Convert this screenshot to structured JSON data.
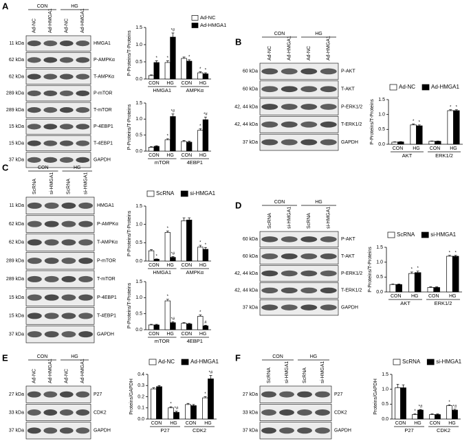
{
  "panels": [
    {
      "letter": "A",
      "blot": {
        "conditions": [
          {
            "name": "CON",
            "lanes": [
              "Ad-NC",
              "Ad-HMGA1"
            ]
          },
          {
            "name": "HG",
            "lanes": [
              "Ad-NC",
              "Ad-HMGA1"
            ]
          }
        ],
        "rows": [
          {
            "kda": "11 kDa",
            "protein": "HMGA1"
          },
          {
            "kda": "62 kDa",
            "protein": "P-AMPKα"
          },
          {
            "kda": "62 kDa",
            "protein": "T-AMPKα"
          },
          {
            "kda": "289 kDa",
            "protein": "P-mTOR"
          },
          {
            "kda": "289 kDa",
            "protein": "T-mTOR"
          },
          {
            "kda": "15 kDa",
            "protein": "P-4EBP1"
          },
          {
            "kda": "15 kDa",
            "protein": "T-4EBP1"
          },
          {
            "kda": "37 kDa",
            "protein": "GAPDH"
          }
        ]
      }
    },
    {
      "letter": "B",
      "blot": {
        "conditions": [
          {
            "name": "CON",
            "lanes": [
              "Ad-NC",
              "Ad-HMGA1"
            ]
          },
          {
            "name": "HG",
            "lanes": [
              "Ad-NC",
              "Ad-HMGA1"
            ]
          }
        ],
        "rows": [
          {
            "kda": "60 kDa",
            "protein": "P-AKT"
          },
          {
            "kda": "60 kDa",
            "protein": "T-AKT"
          },
          {
            "kda": "42, 44 kDa",
            "protein": "P-ERK1/2"
          },
          {
            "kda": "42, 44 kDa",
            "protein": "T-ERK1/2"
          },
          {
            "kda": "37 kDa",
            "protein": "GAPDH"
          }
        ]
      }
    },
    {
      "letter": "C",
      "blot": {
        "conditions": [
          {
            "name": "CON",
            "lanes": [
              "ScRNA",
              "si-HMGA1"
            ]
          },
          {
            "name": "HG",
            "lanes": [
              "ScRNA",
              "si-HMGA1"
            ]
          }
        ],
        "rows": [
          {
            "kda": "11 kDa",
            "protein": "HMGA1"
          },
          {
            "kda": "62 kDa",
            "protein": "P-AMPKα"
          },
          {
            "kda": "62 kDa",
            "protein": "T-AMPKα"
          },
          {
            "kda": "289 kDa",
            "protein": "P-mTOR"
          },
          {
            "kda": "289 kDa",
            "protein": "T-mTOR"
          },
          {
            "kda": "15 kDa",
            "protein": "P-4EBP1"
          },
          {
            "kda": "15 kDa",
            "protein": "T-4EBP1"
          },
          {
            "kda": "37 kDa",
            "protein": "GAPDH"
          }
        ]
      }
    },
    {
      "letter": "D",
      "blot": {
        "conditions": [
          {
            "name": "CON",
            "lanes": [
              "ScRNA",
              "si-HMGA1"
            ]
          },
          {
            "name": "HG",
            "lanes": [
              "ScRNA",
              "si-HMGA1"
            ]
          }
        ],
        "rows": [
          {
            "kda": "60 kDa",
            "protein": "P-AKT"
          },
          {
            "kda": "60 kDa",
            "protein": "T-AKT"
          },
          {
            "kda": "42, 44 kDa",
            "protein": "P-ERK1/2"
          },
          {
            "kda": "42, 44 kDa",
            "protein": "T-ERK1/2"
          },
          {
            "kda": "37 kDa",
            "protein": "GAPDH"
          }
        ]
      }
    },
    {
      "letter": "E",
      "blot": {
        "conditions": [
          {
            "name": "CON",
            "lanes": [
              "Ad-NC",
              "Ad-HMGA1"
            ]
          },
          {
            "name": "HG",
            "lanes": [
              "Ad-NC",
              "Ad-HMGA1"
            ]
          }
        ],
        "rows": [
          {
            "kda": "27 kDa",
            "protein": "P27"
          },
          {
            "kda": "33 kDa",
            "protein": "CDK2"
          },
          {
            "kda": "37 kDa",
            "protein": "GAPDH"
          }
        ]
      }
    },
    {
      "letter": "F",
      "blot": {
        "conditions": [
          {
            "name": "CON",
            "lanes": [
              "ScRNA",
              "si-HMGA1"
            ]
          },
          {
            "name": "HG",
            "lanes": [
              "ScRNA",
              "si-HMGA1"
            ]
          }
        ],
        "rows": [
          {
            "kda": "27 kDa",
            "protein": "P27"
          },
          {
            "kda": "33 kDa",
            "protein": "CDK2"
          },
          {
            "kda": "37 kDa",
            "protein": "GAPDH"
          }
        ]
      }
    }
  ],
  "chart_data": [
    {
      "type": "bar",
      "ylabel": "P-Proteins/T-Proteins",
      "categories": [
        "CON",
        "HG",
        "CON",
        "HG"
      ],
      "groups": [
        "HMGA1",
        "AMPKα"
      ],
      "legend": "upper right",
      "ylim": [
        0,
        1.5
      ],
      "yticks": [
        {
          "value": 0,
          "label": "0.0"
        },
        0.5,
        {
          "value": 1,
          "label": "1.0"
        },
        1.5
      ],
      "series": [
        {
          "name": "Ad-NC",
          "color": "#ffffff",
          "values": [
            0.1,
            0.48,
            0.6,
            0.18
          ],
          "errors": [
            0.02,
            0.05,
            0.04,
            0.03
          ],
          "marks": [
            null,
            "*",
            null,
            "*"
          ]
        },
        {
          "name": "Ad-HMGA1",
          "color": "#000000",
          "values": [
            0.48,
            1.22,
            0.52,
            0.15
          ],
          "errors": [
            0.05,
            0.12,
            0.04,
            0.03
          ],
          "marks": [
            "*",
            "*#",
            "*",
            "*"
          ]
        }
      ]
    },
    {
      "type": "bar",
      "ylabel": "P-Proteins/T-Proteins",
      "categories": [
        "CON",
        "HG",
        "CON",
        "HG"
      ],
      "groups": [
        "mTOR",
        "4EBP1"
      ],
      "ylim": [
        0,
        1.5
      ],
      "yticks": [
        {
          "value": 0,
          "label": "0.0"
        },
        0.5,
        {
          "value": 1,
          "label": "1.0"
        },
        1.5
      ],
      "series": [
        {
          "name": "Ad-NC",
          "color": "#ffffff",
          "values": [
            0.12,
            0.35,
            0.3,
            0.65
          ],
          "errors": [
            0.02,
            0.04,
            0.03,
            0.05
          ],
          "marks": [
            null,
            "*",
            null,
            "*"
          ]
        },
        {
          "name": "Ad-HMGA1",
          "color": "#000000",
          "values": [
            0.15,
            1.08,
            0.28,
            0.98
          ],
          "errors": [
            0.02,
            0.08,
            0.03,
            0.08
          ],
          "marks": [
            null,
            "*#",
            null,
            "*#"
          ]
        }
      ]
    },
    {
      "type": "bar",
      "ylabel": "P-Proteins/T-Proteins",
      "categories": [
        "CON",
        "HG",
        "CON",
        "HG"
      ],
      "groups": [
        "AKT",
        "ERK1/2"
      ],
      "legend": "top",
      "ylim": [
        0,
        1.5
      ],
      "yticks": [
        {
          "value": 0,
          "label": "0.0"
        },
        0.5,
        {
          "value": 1,
          "label": "1.0"
        },
        1.5
      ],
      "series": [
        {
          "name": "Ad-NC",
          "color": "#ffffff",
          "values": [
            0.07,
            0.65,
            0.1,
            1.13
          ],
          "errors": [
            0.01,
            0.03,
            0.01,
            0.03
          ],
          "marks": [
            null,
            "*",
            null,
            "*"
          ]
        },
        {
          "name": "Ad-HMGA1",
          "color": "#000000",
          "values": [
            0.08,
            0.62,
            0.1,
            1.13
          ],
          "errors": [
            0.01,
            0.03,
            0.01,
            0.03
          ],
          "marks": [
            null,
            "*",
            null,
            "*"
          ]
        }
      ]
    },
    {
      "type": "bar",
      "ylabel": "P-Proteins/T-Proteins",
      "categories": [
        "CON",
        "HG",
        "CON",
        "HG"
      ],
      "groups": [
        "HMGA1",
        "AMPKα"
      ],
      "legend": "top",
      "ylim": [
        0,
        1.5
      ],
      "yticks": [
        {
          "value": 0,
          "label": "0.0"
        },
        0.5,
        {
          "value": 1,
          "label": "1.0"
        },
        1.5
      ],
      "series": [
        {
          "name": "ScRNA",
          "color": "#ffffff",
          "values": [
            0.28,
            0.78,
            1.1,
            0.38
          ],
          "errors": [
            0.03,
            0.04,
            0.08,
            0.05
          ],
          "marks": [
            null,
            "*",
            null,
            "*"
          ]
        },
        {
          "name": "si-HMGA1",
          "color": "#000000",
          "values": [
            0.05,
            0.1,
            1.12,
            0.32
          ],
          "errors": [
            0.01,
            0.02,
            0.06,
            0.05
          ],
          "marks": [
            "*",
            "*#",
            null,
            "*"
          ]
        }
      ]
    },
    {
      "type": "bar",
      "ylabel": "P-Proteins/T-Proteins",
      "categories": [
        "CON",
        "HG",
        "CON",
        "HG"
      ],
      "groups": [
        "mTOR",
        "4EBP1"
      ],
      "ylim": [
        0,
        1.5
      ],
      "yticks": [
        {
          "value": 0,
          "label": "0.0"
        },
        0.5,
        {
          "value": 1,
          "label": "1.0"
        },
        1.5
      ],
      "series": [
        {
          "name": "ScRNA",
          "color": "#ffffff",
          "values": [
            0.15,
            0.9,
            0.2,
            0.42
          ],
          "errors": [
            0.02,
            0.05,
            0.02,
            0.04
          ],
          "marks": [
            null,
            "*",
            null,
            "*"
          ]
        },
        {
          "name": "si-HMGA1",
          "color": "#000000",
          "values": [
            0.15,
            0.22,
            0.18,
            0.12
          ],
          "errors": [
            0.02,
            0.03,
            0.02,
            0.02
          ],
          "marks": [
            null,
            "*#",
            null,
            "#"
          ]
        }
      ]
    },
    {
      "type": "bar",
      "ylabel": "P-Proteins/T-Proteins",
      "categories": [
        "CON",
        "HG",
        "CON",
        "HG"
      ],
      "groups": [
        "AKT",
        "ERK1/2"
      ],
      "legend": "top",
      "ylim": [
        0,
        1.5
      ],
      "yticks": [
        {
          "value": 0,
          "label": "0.0"
        },
        0.5,
        {
          "value": 1,
          "label": "1.0"
        },
        1.5
      ],
      "series": [
        {
          "name": "ScRNA",
          "color": "#ffffff",
          "values": [
            0.25,
            0.62,
            0.15,
            1.2
          ],
          "errors": [
            0.02,
            0.05,
            0.02,
            0.03
          ],
          "marks": [
            null,
            "*",
            null,
            "*"
          ]
        },
        {
          "name": "si-HMGA1",
          "color": "#000000",
          "values": [
            0.25,
            0.65,
            0.15,
            1.2
          ],
          "errors": [
            0.02,
            0.05,
            0.02,
            0.03
          ],
          "marks": [
            null,
            "*",
            null,
            "*"
          ]
        }
      ]
    },
    {
      "type": "bar",
      "ylabel": "Proteins/GAPDH",
      "categories": [
        "CON",
        "HG",
        "CON",
        "HG"
      ],
      "groups": [
        "P27",
        "CDK2"
      ],
      "legend": "top",
      "ylim": [
        0,
        0.4
      ],
      "yticks": [
        {
          "value": 0,
          "label": "0.0"
        },
        0.1,
        0.2,
        0.3,
        0.4
      ],
      "series": [
        {
          "name": "Ad-NC",
          "color": "#ffffff",
          "values": [
            0.27,
            0.1,
            0.13,
            0.19
          ],
          "errors": [
            0.01,
            0.01,
            0.01,
            0.01
          ],
          "marks": [
            null,
            "*",
            null,
            "*"
          ]
        },
        {
          "name": "Ad-HMGA1",
          "color": "#000000",
          "values": [
            0.29,
            0.06,
            0.12,
            0.36
          ],
          "errors": [
            0.01,
            0.01,
            0.01,
            0.03
          ],
          "marks": [
            null,
            "*#",
            null,
            "*#"
          ]
        }
      ]
    },
    {
      "type": "bar",
      "ylabel": "Proteins/GAPDH",
      "categories": [
        "CON",
        "HG",
        "CON",
        "HG"
      ],
      "groups": [
        "P27",
        "CDK2"
      ],
      "legend": "top",
      "ylim": [
        0,
        1.5
      ],
      "yticks": [
        {
          "value": 0,
          "label": "0.0"
        },
        0.5,
        {
          "value": 1,
          "label": "1.0"
        },
        1.5
      ],
      "series": [
        {
          "name": "ScRNA",
          "color": "#ffffff",
          "values": [
            1.05,
            0.15,
            0.15,
            0.45
          ],
          "errors": [
            0.12,
            0.02,
            0.02,
            0.03
          ],
          "marks": [
            null,
            "*",
            null,
            "*"
          ]
        },
        {
          "name": "si-HMGA1",
          "color": "#000000",
          "values": [
            1.05,
            0.3,
            0.15,
            0.3
          ],
          "errors": [
            0.1,
            0.02,
            0.02,
            0.03
          ],
          "marks": [
            null,
            "*#",
            null,
            "*#"
          ]
        }
      ]
    }
  ]
}
